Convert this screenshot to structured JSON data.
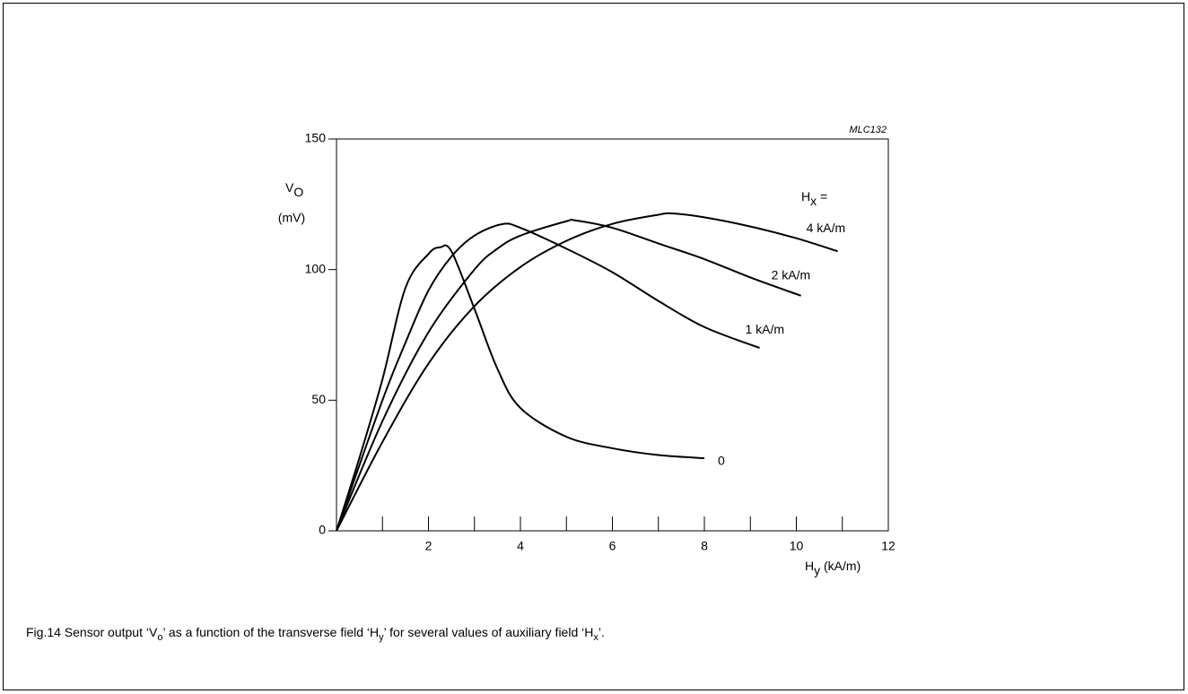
{
  "chart_data": {
    "type": "line",
    "code": "MLC132",
    "ylabel": {
      "main": "V",
      "sub": "O",
      "unit": "(mV)"
    },
    "xlabel": {
      "main": "H",
      "sub": "y",
      "unit": " (kA/m)"
    },
    "legend_title": {
      "main": "H",
      "sub": "x",
      "rest": " ="
    },
    "caption": [
      "Fig.14  Sensor output ‘V",
      "o",
      "’ as a function of the transverse field ‘H",
      "y",
      "’ for several values of auxiliary field ‘H",
      "x",
      "’."
    ],
    "xlim": [
      0,
      12
    ],
    "ylim": [
      0,
      150
    ],
    "xticks": [
      2,
      4,
      6,
      8,
      10,
      12
    ],
    "xminor_ticks": [
      1,
      3,
      5,
      7,
      9,
      11
    ],
    "yticks": [
      0,
      50,
      100,
      150
    ],
    "series": [
      {
        "name": "0",
        "color": "#000000",
        "x": [
          0,
          0.5,
          1,
          1.5,
          2,
          2.25,
          2.5,
          3,
          3.5,
          4,
          5,
          6,
          7,
          8
        ],
        "values": [
          0,
          28,
          58,
          93,
          106,
          108.5,
          107,
          85,
          62,
          47,
          36,
          31.6,
          29,
          27.8
        ]
      },
      {
        "name": "1 kA/m",
        "color": "#000000",
        "x": [
          0,
          1,
          1.5,
          2,
          2.5,
          3,
          3.6,
          4,
          5,
          6,
          7,
          8,
          9.2
        ],
        "values": [
          0,
          50,
          72,
          92,
          105,
          113,
          117.4,
          116,
          108,
          99,
          88,
          78,
          70
        ]
      },
      {
        "name": "2 kA/m",
        "color": "#000000",
        "x": [
          0,
          1,
          2,
          3,
          3.5,
          4,
          5,
          5.2,
          6,
          7,
          8,
          9,
          10.1
        ],
        "values": [
          0,
          42,
          76,
          100,
          108,
          113,
          118.5,
          118.8,
          116,
          110,
          104,
          97,
          90
        ]
      },
      {
        "name": "4 kA/m",
        "color": "#000000",
        "x": [
          0,
          1,
          2,
          3,
          4,
          5,
          6,
          7,
          7.3,
          8,
          9,
          10,
          10.9
        ],
        "values": [
          0,
          34,
          64,
          86,
          101,
          111,
          117.5,
          121,
          121.5,
          120,
          116.5,
          112,
          107
        ]
      }
    ]
  }
}
